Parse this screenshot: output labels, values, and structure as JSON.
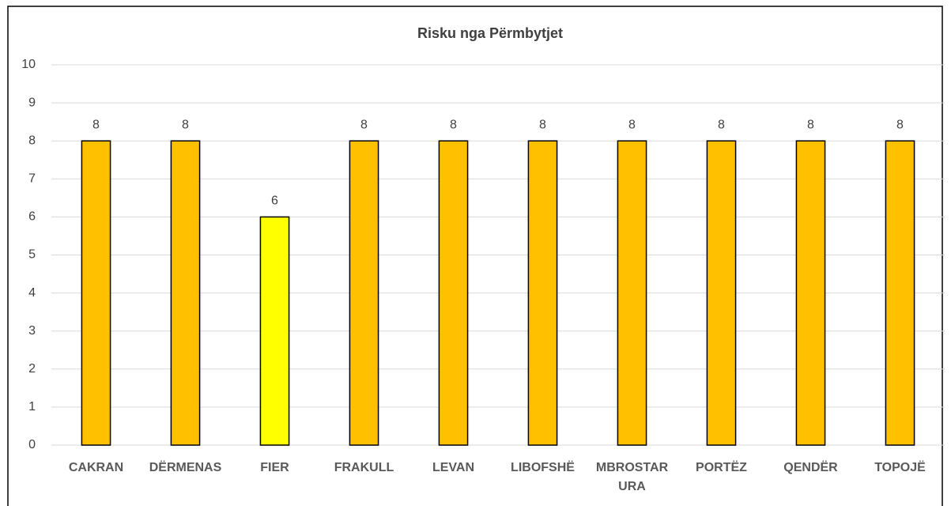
{
  "chart_data": {
    "type": "bar",
    "title": "Risku nga Përmbytjet",
    "categories": [
      "CAKRAN",
      "DËRMENAS",
      "FIER",
      "FRAKULL",
      "LEVAN",
      "LIBOFSHË",
      "MBROSTAR URA",
      "PORTËZ",
      "QENDËR",
      "TOPOJË"
    ],
    "values": [
      8,
      8,
      6,
      8,
      8,
      8,
      8,
      8,
      8,
      8
    ],
    "colors": [
      "#FFC000",
      "#FFC000",
      "#FFFF00",
      "#FFC000",
      "#FFC000",
      "#FFC000",
      "#FFC000",
      "#FFC000",
      "#FFC000",
      "#FFC000"
    ],
    "ylim": [
      0,
      10
    ],
    "yticks": [
      0,
      1,
      2,
      3,
      4,
      5,
      6,
      7,
      8,
      9,
      10
    ],
    "grid": true
  }
}
